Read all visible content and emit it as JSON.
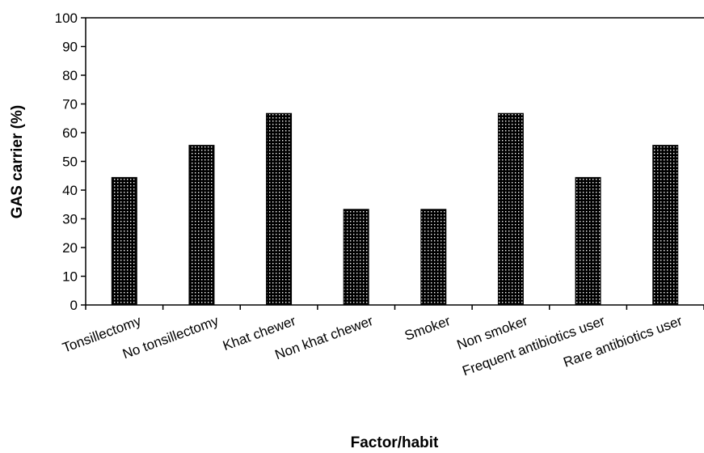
{
  "chart_data": {
    "type": "bar",
    "title": "",
    "xlabel": "Factor/habit",
    "ylabel": "GAS carrier (%)",
    "ylim": [
      0,
      100
    ],
    "yticks": [
      0,
      10,
      20,
      30,
      40,
      50,
      60,
      70,
      80,
      90,
      100
    ],
    "categories": [
      "Tonsillectomy",
      "No tonsillectomy",
      "Khat chewer",
      "Non khat chewer",
      "Smoker",
      "Non smoker",
      "Frequent antibiotics user",
      "Rare antibiotics user"
    ],
    "values": [
      44.4,
      55.6,
      66.7,
      33.3,
      33.3,
      66.7,
      44.4,
      55.6
    ],
    "grid": false,
    "legend": "none",
    "bar_pattern": "black with white dots"
  }
}
